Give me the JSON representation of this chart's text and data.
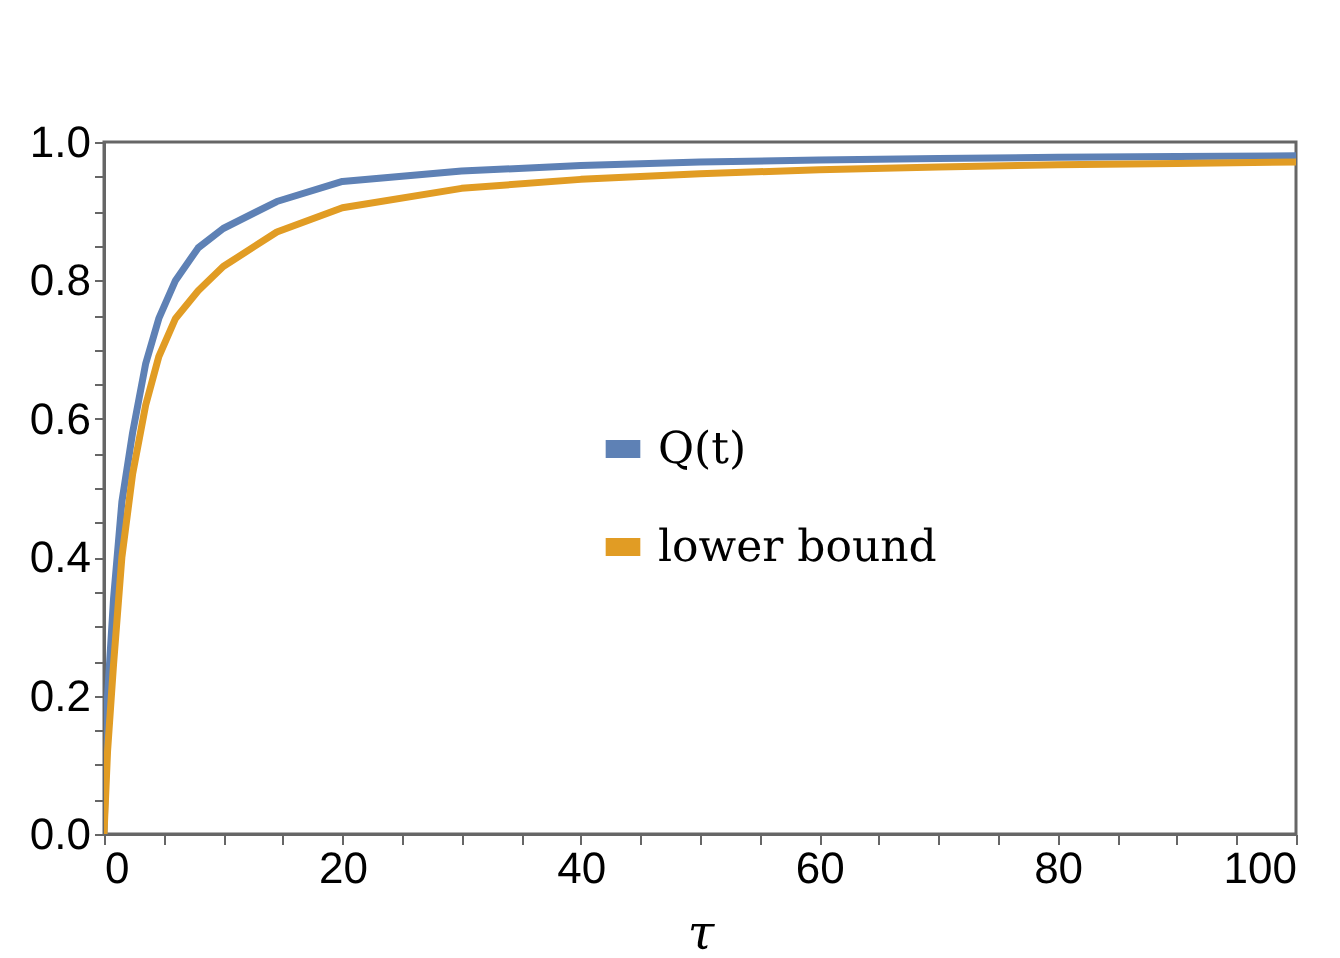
{
  "chart_data": {
    "type": "line",
    "xlabel": "τ",
    "legend": "center",
    "grid": false,
    "line_style": "solid",
    "marker": "none",
    "xlim": [
      0,
      100
    ],
    "ylim": [
      0,
      1
    ],
    "xticks": [
      0,
      {
        "value": 5,
        "label": null
      },
      {
        "value": 10,
        "label": null
      },
      {
        "value": 15,
        "label": null
      },
      20,
      {
        "value": 25,
        "label": null
      },
      {
        "value": 30,
        "label": null
      },
      {
        "value": 35,
        "label": null
      },
      40,
      {
        "value": 45,
        "label": null
      },
      {
        "value": 50,
        "label": null
      },
      {
        "value": 55,
        "label": null
      },
      60,
      {
        "value": 65,
        "label": null
      },
      {
        "value": 70,
        "label": null
      },
      {
        "value": 75,
        "label": null
      },
      80,
      {
        "value": 85,
        "label": null
      },
      {
        "value": 90,
        "label": null
      },
      {
        "value": 95,
        "label": null
      },
      100
    ],
    "yticks": [
      {
        "value": 0,
        "label": "0.0"
      },
      {
        "value": 0.05,
        "label": null
      },
      {
        "value": 0.1,
        "label": null
      },
      {
        "value": 0.15,
        "label": null
      },
      {
        "value": 0.2,
        "label": "0.2"
      },
      {
        "value": 0.25,
        "label": null
      },
      {
        "value": 0.3,
        "label": null
      },
      {
        "value": 0.35,
        "label": null
      },
      {
        "value": 0.4,
        "label": "0.4"
      },
      {
        "value": 0.45,
        "label": null
      },
      {
        "value": 0.5,
        "label": null
      },
      {
        "value": 0.55,
        "label": null
      },
      {
        "value": 0.6,
        "label": "0.6"
      },
      {
        "value": 0.65,
        "label": null
      },
      {
        "value": 0.7,
        "label": null
      },
      {
        "value": 0.75,
        "label": null
      },
      {
        "value": 0.8,
        "label": "0.8"
      },
      {
        "value": 0.85,
        "label": null
      },
      {
        "value": 0.9,
        "label": null
      },
      {
        "value": 0.95,
        "label": null
      },
      {
        "value": 1,
        "label": "1.0"
      }
    ],
    "x": [
      0,
      0.3,
      0.8,
      1.5,
      2.4,
      3.5,
      4.6,
      6,
      7.9,
      10,
      14.5,
      20,
      30,
      40,
      50,
      60,
      70,
      80,
      90,
      100
    ],
    "series": [
      {
        "name": "Q(t)",
        "color": "#5e81b5",
        "values": [
          0,
          0.2,
          0.34,
          0.48,
          0.58,
          0.68,
          0.745,
          0.8,
          0.847,
          0.875,
          0.914,
          0.943,
          0.958,
          0.966,
          0.971,
          0.974,
          0.976,
          0.978,
          0.979,
          0.98
        ]
      },
      {
        "name": "lower bound",
        "color": "#e19c24",
        "values": [
          0,
          0.12,
          0.245,
          0.4,
          0.52,
          0.62,
          0.69,
          0.745,
          0.785,
          0.82,
          0.87,
          0.905,
          0.933,
          0.946,
          0.954,
          0.96,
          0.964,
          0.967,
          0.969,
          0.971
        ]
      }
    ]
  }
}
